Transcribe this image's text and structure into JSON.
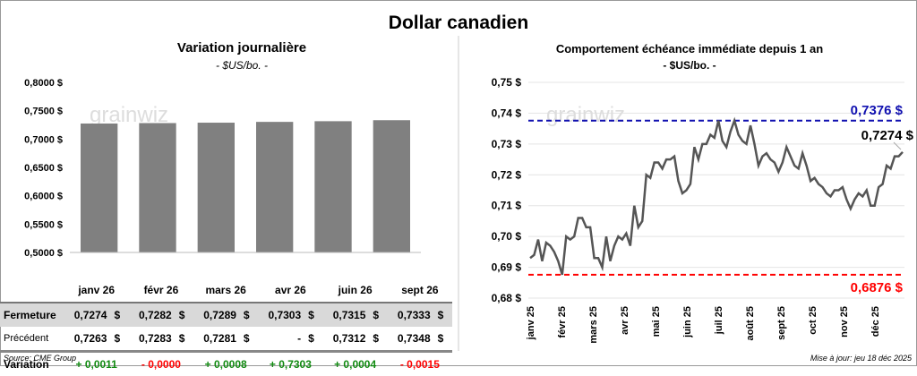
{
  "title": "Dollar canadien",
  "left": {
    "title": "Variation  journalière",
    "unit": "- $US/bo. -"
  },
  "right": {
    "title": "Comportement échéance immédiate depuis 1 an",
    "unit": "- $US/bo. -"
  },
  "watermark": "grainwiz",
  "table": {
    "headers": [
      "janv 26",
      "févr 26",
      "mars 26",
      "avr 26",
      "juin 26",
      "sept 26"
    ],
    "rows": [
      {
        "label": "Fermeture",
        "values": [
          "0,7274",
          "0,7282",
          "0,7289",
          "0,7303",
          "0,7315",
          "0,7333"
        ]
      },
      {
        "label": "Précédent",
        "values": [
          "0,7263",
          "0,7283",
          "0,7281",
          "-",
          "0,7312",
          "0,7348"
        ]
      },
      {
        "label": "Variation",
        "values": [
          "+ 0,0011",
          "- 0,0000",
          "+ 0,0008",
          "+ 0,7303",
          "+ 0,0004",
          "- 0,0015"
        ],
        "signs": [
          "pos",
          "neg",
          "pos",
          "pos",
          "pos",
          "neg"
        ]
      }
    ],
    "currency": "$"
  },
  "source": "Source: CME Group",
  "updated": "Mise à jour: jeu 18 déc 2025",
  "chart_data": [
    {
      "type": "bar",
      "title": "Variation  journalière",
      "categories": [
        "janv 26",
        "févr 26",
        "mars 26",
        "avr 26",
        "juin 26",
        "sept 26"
      ],
      "values": [
        0.7274,
        0.7282,
        0.7289,
        0.7303,
        0.7315,
        0.7333
      ],
      "ylim": [
        0.5,
        0.8
      ],
      "yticks": [
        "0,5000 $",
        "0,5500 $",
        "0,6000 $",
        "0,6500 $",
        "0,7000 $",
        "0,7500 $",
        "0,8000 $"
      ],
      "color": "#808080"
    },
    {
      "type": "line",
      "title": "Comportement échéance immédiate depuis 1 an",
      "ylim": [
        0.68,
        0.75
      ],
      "yticks": [
        "0,68 $",
        "0,69 $",
        "0,70 $",
        "0,71 $",
        "0,72 $",
        "0,73 $",
        "0,74 $",
        "0,75 $"
      ],
      "xticks": [
        "janv 25",
        "févr 25",
        "mars 25",
        "avr 25",
        "mai 25",
        "juin 25",
        "juil 25",
        "août 25",
        "sept 25",
        "oct 25",
        "nov 25",
        "déc 25"
      ],
      "values": [
        0.693,
        0.694,
        0.699,
        0.692,
        0.698,
        0.697,
        0.695,
        0.692,
        0.6876,
        0.7,
        0.699,
        0.7,
        0.706,
        0.706,
        0.703,
        0.703,
        0.693,
        0.693,
        0.69,
        0.7,
        0.692,
        0.697,
        0.7,
        0.699,
        0.701,
        0.697,
        0.71,
        0.703,
        0.705,
        0.72,
        0.719,
        0.724,
        0.724,
        0.722,
        0.725,
        0.725,
        0.726,
        0.718,
        0.714,
        0.715,
        0.717,
        0.729,
        0.725,
        0.73,
        0.73,
        0.733,
        0.732,
        0.7376,
        0.731,
        0.729,
        0.734,
        0.7376,
        0.733,
        0.731,
        0.73,
        0.736,
        0.73,
        0.723,
        0.726,
        0.727,
        0.725,
        0.724,
        0.721,
        0.724,
        0.729,
        0.726,
        0.723,
        0.722,
        0.727,
        0.723,
        0.718,
        0.719,
        0.717,
        0.716,
        0.714,
        0.713,
        0.715,
        0.715,
        0.716,
        0.712,
        0.709,
        0.712,
        0.714,
        0.713,
        0.715,
        0.71,
        0.71,
        0.716,
        0.717,
        0.723,
        0.722,
        0.726,
        0.726,
        0.7274
      ],
      "max": {
        "value": 0.7376,
        "label": "0,7376 $",
        "color": "#1010b0"
      },
      "min": {
        "value": 0.6876,
        "label": "0,6876 $",
        "color": "#ff0000"
      },
      "last": {
        "value": 0.7274,
        "label": "0,7274 $"
      }
    }
  ]
}
